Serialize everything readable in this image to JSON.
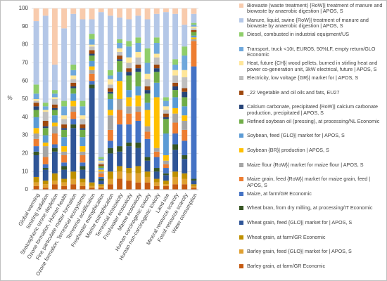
{
  "chart_data": {
    "type": "stacked_bar",
    "y_label": "%",
    "ylim": [
      0,
      100
    ],
    "yticks": [
      0,
      10,
      20,
      30,
      40,
      50,
      60,
      70,
      80,
      90,
      100
    ],
    "categories": [
      "Global warming",
      "Ionizing radiation",
      "Stratospheric ozone depletion",
      "Ozone formation, Human health",
      "Fine particulate matter formation",
      "Ozone formation, Terrestrial ecosystems",
      "Terrestrial acidification",
      "Freshwater eutrophication",
      "Marine eutrophication",
      "Terrestrial ecotoxicity",
      "Freshwater ecotoxicity",
      "Marine ecotoxicity",
      "Human carcinogenic toxicity",
      "Human non-carcinogenic toxicity",
      "Land use",
      "Mineral resource scarcity",
      "Fossil resource scarcity",
      "Water consumption"
    ],
    "series": [
      {
        "name": "Barley grain, at farm/GR Economic",
        "color": "#c55a11",
        "values": [
          2,
          1,
          3,
          2,
          3,
          2,
          1,
          1,
          3,
          6,
          5,
          4,
          4,
          2,
          2,
          3,
          3,
          1
        ]
      },
      {
        "name": "Barley grain, feed {GLO}| market for | APOS, S",
        "color": "#e0a030",
        "values": [
          2,
          2,
          2,
          2,
          3,
          2,
          1,
          1,
          3,
          4,
          4,
          5,
          3,
          2,
          1,
          4,
          3,
          1
        ]
      },
      {
        "name": "Wheat grain, at farm/GR Economic",
        "color": "#bf9000",
        "values": [
          3,
          2,
          4,
          2,
          4,
          2,
          2,
          1,
          4,
          3,
          3,
          4,
          3,
          2,
          2,
          3,
          3,
          1
        ]
      },
      {
        "name": "Wheat grain, feed {GLO}| market for | APOS, S",
        "color": "#2f5597",
        "values": [
          12,
          6,
          12,
          5,
          24,
          5,
          52,
          2,
          10,
          8,
          12,
          10,
          6,
          4,
          3,
          12,
          8,
          2
        ]
      },
      {
        "name": "Wheat bran, from dry milling, at processing/IT Economic",
        "color": "#375623",
        "values": [
          2,
          1,
          2,
          2,
          2,
          2,
          2,
          1,
          3,
          3,
          2,
          3,
          2,
          2,
          1,
          3,
          2,
          1
        ]
      },
      {
        "name": "Maize, at farm/GR Economic",
        "color": "#4472c4",
        "values": [
          3,
          2,
          2,
          2,
          3,
          2,
          2,
          1,
          4,
          12,
          10,
          12,
          10,
          6,
          3,
          6,
          8,
          62
        ]
      },
      {
        "name": "Maize grain, feed {RoW}| market for maize grain, feed | APOS, S",
        "color": "#ed7d31",
        "values": [
          4,
          4,
          6,
          4,
          4,
          4,
          4,
          2,
          6,
          8,
          6,
          5,
          4,
          3,
          2,
          6,
          6,
          14
        ]
      },
      {
        "name": "Maize flour {RoW}| market for maize flour | APOS, S",
        "color": "#a5a5a5",
        "values": [
          3,
          6,
          4,
          2,
          3,
          2,
          2,
          1,
          8,
          6,
          4,
          3,
          3,
          2,
          2,
          5,
          5,
          1
        ]
      },
      {
        "name": "Soybean {BR}| production | APOS, S",
        "color": "#ffc000",
        "values": [
          3,
          2,
          2,
          3,
          3,
          3,
          2,
          1,
          3,
          10,
          5,
          6,
          9,
          28,
          3,
          3,
          3,
          1
        ]
      },
      {
        "name": "Soybean, feed {GLO}| market for | APOS, S",
        "color": "#5b9bd5",
        "values": [
          6,
          4,
          4,
          5,
          4,
          5,
          3,
          1,
          6,
          5,
          4,
          5,
          4,
          8,
          12,
          6,
          5,
          1
        ]
      },
      {
        "name": "Refined soybean oil (pressing), at processing/NL Economic",
        "color": "#70ad47",
        "values": [
          4,
          4,
          3,
          4,
          3,
          4,
          3,
          1,
          3,
          6,
          8,
          8,
          5,
          6,
          8,
          4,
          5,
          2
        ]
      },
      {
        "name": "Calcium carbonate, precipitated {RoW}| calcium carbonate production, precipitated | APOS, S",
        "color": "#264478",
        "values": [
          2,
          1,
          1,
          1,
          1,
          1,
          1,
          0,
          1,
          1,
          2,
          2,
          2,
          2,
          1,
          2,
          3,
          0
        ]
      },
      {
        "name": "_22 Vegetable and oil oils and fats, EU27",
        "color": "#9e480e",
        "values": [
          2,
          3,
          2,
          2,
          2,
          2,
          2,
          1,
          2,
          2,
          2,
          2,
          2,
          2,
          2,
          2,
          2,
          1
        ]
      },
      {
        "name": "Electricity, low voltage {GR}| market for | APOS, S",
        "color": "#bfbfbf",
        "values": [
          1,
          5,
          3,
          3,
          2,
          3,
          2,
          1,
          2,
          2,
          3,
          4,
          4,
          4,
          2,
          4,
          6,
          1
        ]
      },
      {
        "name": "Heat, future {CH}| wood pellets, burned in stirling heat and power co-generation unit, 3kW electrical, future | APOS, S",
        "color": "#ffe699",
        "values": [
          1,
          1,
          1,
          2,
          2,
          2,
          1,
          1,
          3,
          2,
          3,
          3,
          3,
          2,
          2,
          3,
          4,
          1
        ]
      },
      {
        "name": "Transport, truck <10t, EURO5, 50%LF, empty return/GLO Economic",
        "color": "#6fa8dc",
        "values": [
          3,
          2,
          2,
          5,
          3,
          5,
          3,
          1,
          2,
          3,
          6,
          5,
          6,
          6,
          3,
          3,
          8,
          1
        ]
      },
      {
        "name": "Diesel, combusted in industrial equipment/US",
        "color": "#8fce6a",
        "values": [
          5,
          2,
          2,
          3,
          3,
          3,
          3,
          1,
          3,
          2,
          3,
          3,
          8,
          3,
          2,
          3,
          5,
          1
        ]
      },
      {
        "name": "Manure, liquid, swine {RoW}| treatment of manure and biowaste by anaerobic digestion | APOS, S",
        "color": "#b4c7e7",
        "values": [
          35,
          48,
          14,
          40,
          28,
          45,
          8,
          80,
          30,
          12,
          12,
          12,
          16,
          13,
          47,
          25,
          12,
          5
        ]
      },
      {
        "name": "Biowaste (waste treatment) {RoW}| treatment of manure and biowaste by anaerobic digestion | APOS, S",
        "color": "#f8cbad",
        "values": [
          7,
          4,
          31,
          11,
          3,
          6,
          6,
          2,
          4,
          5,
          6,
          4,
          6,
          3,
          2,
          3,
          9,
          3
        ]
      }
    ]
  }
}
